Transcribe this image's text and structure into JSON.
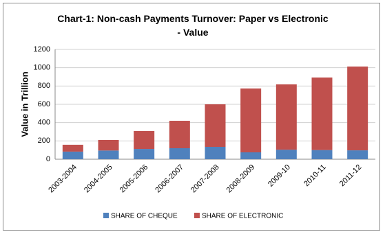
{
  "chart_data": {
    "type": "stacked_bar",
    "title": "Chart-1: Non-cash Payments Turnover: Paper vs Electronic - Value",
    "y_label": "Value in Trillion",
    "categories": [
      "2003-2004",
      "2004-2005",
      "2005-2006",
      "2006-2007",
      "2007-2008",
      "2008-2009",
      "2009-10",
      "2010-11",
      "2011-12"
    ],
    "series": [
      {
        "name": "SHARE OF CHEQUE",
        "color": "#4f81bd",
        "values": [
          83,
          95,
          112,
          120,
          135,
          75,
          104,
          100,
          97
        ]
      },
      {
        "name": "SHARE OF ELECTRONIC",
        "color": "#c0504d",
        "values": [
          75,
          115,
          196,
          300,
          465,
          698,
          714,
          793,
          916
        ]
      }
    ],
    "ylim": [
      0,
      1200
    ],
    "yticks": [
      0,
      200,
      400,
      600,
      800,
      1000,
      1200
    ],
    "grid": true,
    "legend": "bottom"
  }
}
